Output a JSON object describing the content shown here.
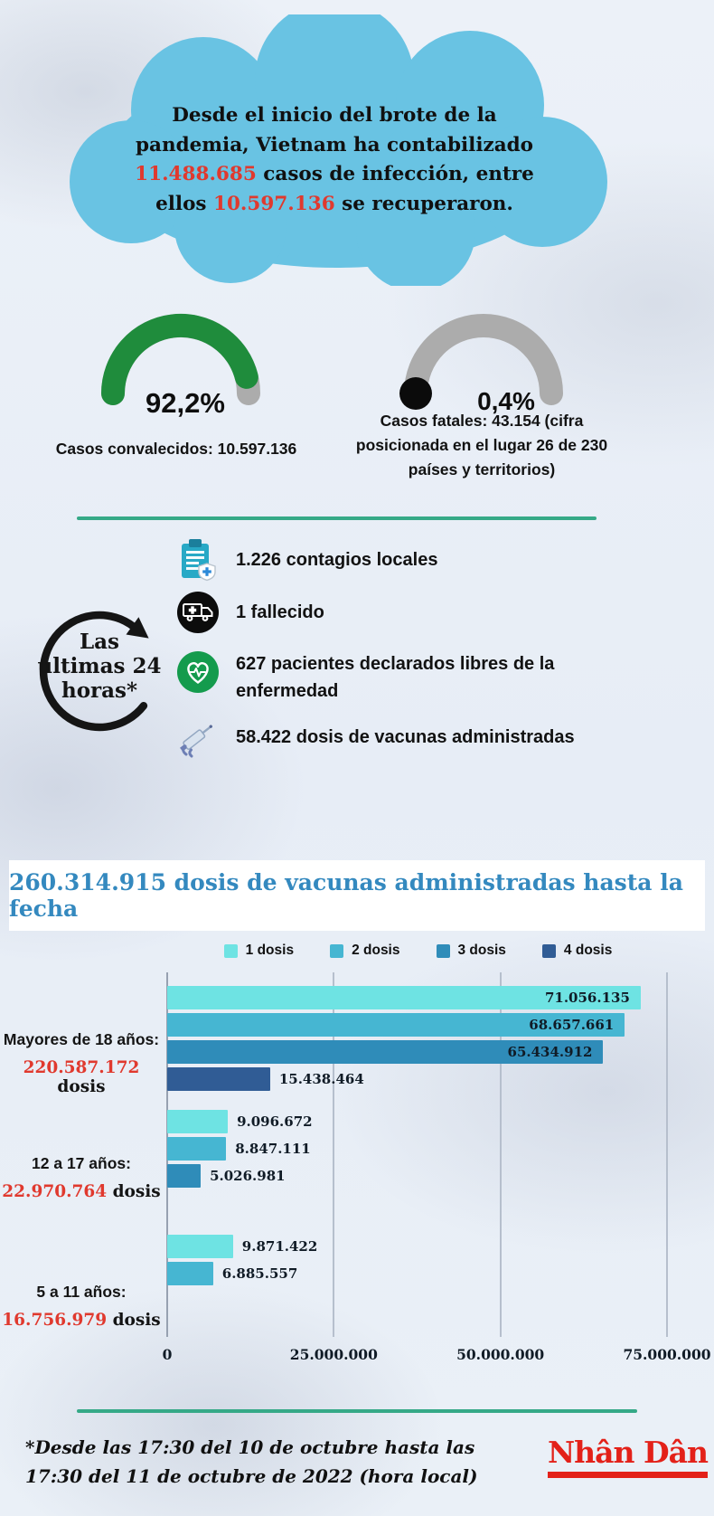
{
  "headline": {
    "part1": "Desde el inicio del brote de la pandemia, Vietnam ha contabilizado ",
    "num1": "11.488.685",
    "part2": " casos de infección, entre ellos ",
    "num2": "10.597.136",
    "part3": " se recuperaron."
  },
  "gauges": {
    "recovered": {
      "percent": "92,2%",
      "caption": "Casos convalecidos: 10.597.136"
    },
    "fatal": {
      "percent": "0,4%",
      "caption": "Casos fatales: 43.154 (cifra posicionada en el lugar 26 de 230 países y territorios)"
    }
  },
  "last24h": {
    "label_lines": [
      "Las",
      "últimas 24",
      "horas*"
    ],
    "items": [
      {
        "icon": "clipboard-medical-icon",
        "text": "1.226 contagios locales"
      },
      {
        "icon": "ambulance-icon",
        "text": "1 fallecido"
      },
      {
        "icon": "heart-pulse-icon",
        "text": "627 pacientes declarados libres de la enfermedad"
      },
      {
        "icon": "syringe-icon",
        "text": "58.422 dosis de vacunas administradas"
      }
    ]
  },
  "banner": {
    "text": "260.314.915 dosis de vacunas administradas hasta la fecha"
  },
  "chart_data": {
    "type": "bar",
    "orientation": "horizontal",
    "title": "260.314.915 dosis de vacunas administradas hasta la fecha",
    "legend_position": "top",
    "grid": true,
    "x_axis": {
      "min": 0,
      "max": 75000000,
      "ticks": [
        {
          "value": 0,
          "label": "0"
        },
        {
          "value": 25000000,
          "label": "25.000.000"
        },
        {
          "value": 50000000,
          "label": "50.000.000"
        },
        {
          "value": 75000000,
          "label": "75.000.000"
        }
      ]
    },
    "series": [
      {
        "name": "1 dosis",
        "color": "#6EE3E3"
      },
      {
        "name": "2 dosis",
        "color": "#46B6D2"
      },
      {
        "name": "3 dosis",
        "color": "#2F8CB9"
      },
      {
        "name": "4 dosis",
        "color": "#305C95"
      }
    ],
    "groups": [
      {
        "label": "Mayores de 18 años:",
        "total": "220.587.172",
        "total_suffix": " dosis",
        "bars": [
          {
            "series": "1 dosis",
            "value": 71056135,
            "label": "71.056.135"
          },
          {
            "series": "2 dosis",
            "value": 68657661,
            "label": "68.657.661"
          },
          {
            "series": "3 dosis",
            "value": 65434912,
            "label": "65.434.912"
          },
          {
            "series": "4 dosis",
            "value": 15438464,
            "label": "15.438.464"
          }
        ]
      },
      {
        "label": "12 a 17 años:",
        "total": "22.970.764",
        "total_suffix": " dosis",
        "bars": [
          {
            "series": "1 dosis",
            "value": 9096672,
            "label": "9.096.672"
          },
          {
            "series": "2 dosis",
            "value": 8847111,
            "label": "8.847.111"
          },
          {
            "series": "3 dosis",
            "value": 5026981,
            "label": "5.026.981"
          }
        ]
      },
      {
        "label": "5 a 11 años:",
        "total": "16.756.979",
        "total_suffix": " dosis",
        "bars": [
          {
            "series": "1 dosis",
            "value": 9871422,
            "label": "9.871.422"
          },
          {
            "series": "2 dosis",
            "value": 6885557,
            "label": "6.885.557"
          }
        ]
      }
    ]
  },
  "footer": {
    "note": "*Desde las 17:30 del 10 de octubre hasta las 17:30 del 11 de octubre de 2022 (hora local)",
    "logo": "Nhân Dân"
  },
  "colors": {
    "cloud": "#69C3E3",
    "accent_red": "#E0392E",
    "banner_blue": "#3489BF",
    "divider_teal": "#35A987",
    "gauge_green": "#1F8C3C",
    "gauge_gray": "#ACACAC",
    "logo_red": "#E32119"
  }
}
